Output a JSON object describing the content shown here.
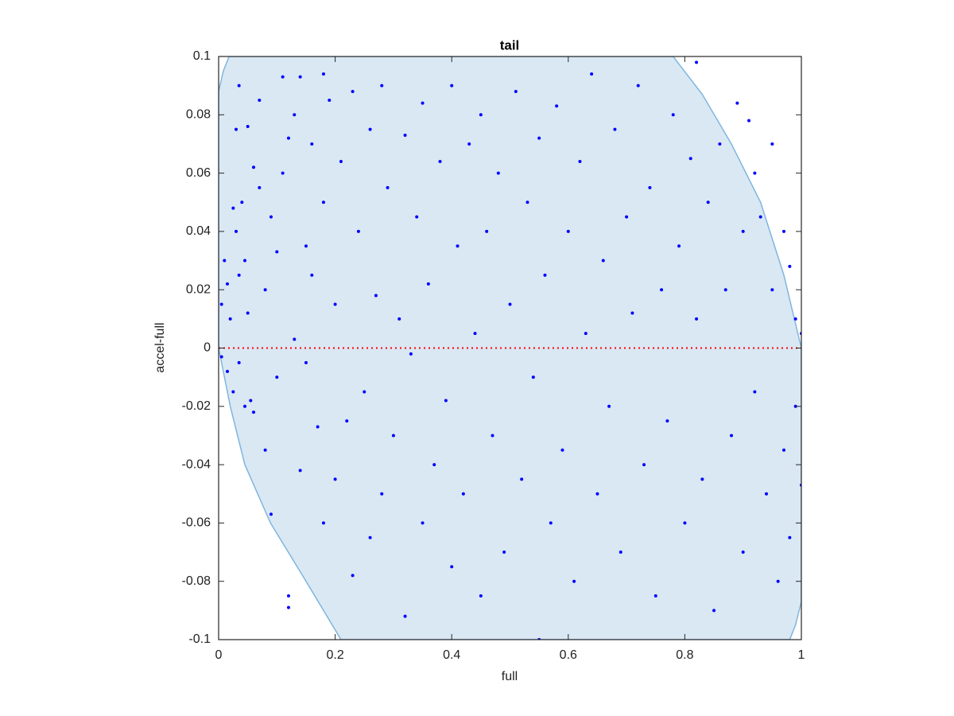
{
  "chart_data": {
    "type": "scatter",
    "title": "tail",
    "xlabel": "full",
    "ylabel": "accel-full",
    "xlim": [
      0,
      1
    ],
    "ylim": [
      -0.1,
      0.1
    ],
    "xticks": [
      0,
      0.2,
      0.4,
      0.6,
      0.8,
      1
    ],
    "yticks": [
      -0.1,
      -0.08,
      -0.06,
      -0.04,
      -0.02,
      0,
      0.02,
      0.04,
      0.06,
      0.08,
      0.1
    ],
    "color": "#0000ff",
    "region": {
      "color": "#d9e8f3",
      "edgecolor": "#7fb6de",
      "x": [
        0.018,
        0.008,
        0,
        0,
        0.02,
        0.045,
        0.089,
        0.15,
        0.21,
        0.98,
        0.99,
        1,
        1,
        0.97,
        0.93,
        0.88,
        0.83,
        0.78
      ],
      "y": [
        0.1,
        0.095,
        0.088,
        0,
        -0.02,
        -0.04,
        -0.06,
        -0.08,
        -0.1,
        -0.1,
        -0.095,
        -0.087,
        0,
        0.025,
        0.05,
        0.07,
        0.087,
        0.1
      ]
    },
    "reference_line": {
      "value": 0,
      "color": "#ff0000"
    },
    "x": [
      0.005,
      0.01,
      0.015,
      0.02,
      0.025,
      0.03,
      0.035,
      0.04,
      0.045,
      0.05,
      0.005,
      0.015,
      0.025,
      0.035,
      0.045,
      0.055,
      0.06,
      0.03,
      0.035,
      0.05,
      0.06,
      0.07,
      0.07,
      0.08,
      0.08,
      0.09,
      0.09,
      0.1,
      0.1,
      0.11,
      0.11,
      0.12,
      0.12,
      0.12,
      0.13,
      0.13,
      0.14,
      0.14,
      0.15,
      0.15,
      0.16,
      0.16,
      0.17,
      0.18,
      0.18,
      0.18,
      0.19,
      0.2,
      0.2,
      0.21,
      0.22,
      0.23,
      0.23,
      0.24,
      0.25,
      0.26,
      0.26,
      0.27,
      0.28,
      0.28,
      0.29,
      0.3,
      0.31,
      0.32,
      0.32,
      0.33,
      0.34,
      0.35,
      0.35,
      0.36,
      0.37,
      0.38,
      0.39,
      0.4,
      0.4,
      0.41,
      0.42,
      0.43,
      0.44,
      0.45,
      0.45,
      0.46,
      0.47,
      0.48,
      0.49,
      0.5,
      0.51,
      0.52,
      0.53,
      0.54,
      0.55,
      0.55,
      0.56,
      0.57,
      0.58,
      0.59,
      0.6,
      0.61,
      0.62,
      0.63,
      0.64,
      0.65,
      0.66,
      0.67,
      0.68,
      0.69,
      0.7,
      0.71,
      0.72,
      0.73,
      0.74,
      0.75,
      0.76,
      0.77,
      0.78,
      0.79,
      0.8,
      0.81,
      0.82,
      0.83,
      0.84,
      0.85,
      0.86,
      0.87,
      0.88,
      0.89,
      0.9,
      0.9,
      0.91,
      0.92,
      0.92,
      0.93,
      0.94,
      0.95,
      0.95,
      0.96,
      0.97,
      0.97,
      0.98,
      0.98,
      0.99,
      0.99,
      1,
      1,
      0.82
    ],
    "values": [
      0.015,
      0.03,
      0.022,
      0.01,
      0.048,
      0.04,
      0.025,
      0.05,
      0.03,
      0.012,
      -0.003,
      -0.008,
      -0.015,
      -0.005,
      -0.02,
      -0.018,
      -0.022,
      0.075,
      0.09,
      0.076,
      0.062,
      0.085,
      0.055,
      0.02,
      -0.035,
      0.045,
      -0.057,
      0.033,
      -0.01,
      0.093,
      0.06,
      0.072,
      -0.085,
      -0.089,
      0.08,
      0.003,
      0.093,
      -0.042,
      0.035,
      -0.005,
      0.07,
      0.025,
      -0.027,
      0.094,
      0.05,
      -0.06,
      0.085,
      0.015,
      -0.045,
      0.064,
      -0.025,
      0.088,
      -0.078,
      0.04,
      -0.015,
      0.075,
      -0.065,
      0.018,
      0.09,
      -0.05,
      0.055,
      -0.03,
      0.01,
      0.073,
      -0.092,
      -0.002,
      0.045,
      0.084,
      -0.06,
      0.022,
      -0.04,
      0.064,
      -0.018,
      0.09,
      -0.075,
      0.035,
      -0.05,
      0.07,
      0.005,
      0.08,
      -0.085,
      0.04,
      -0.03,
      0.06,
      -0.07,
      0.015,
      0.088,
      -0.045,
      0.05,
      -0.01,
      0.072,
      -0.1,
      0.025,
      -0.06,
      0.083,
      -0.035,
      0.04,
      -0.08,
      0.064,
      0.005,
      0.094,
      -0.05,
      0.03,
      -0.02,
      0.075,
      -0.07,
      0.045,
      0.012,
      0.09,
      -0.04,
      0.055,
      -0.085,
      0.02,
      -0.025,
      0.08,
      0.035,
      -0.06,
      0.065,
      0.01,
      -0.045,
      0.05,
      -0.09,
      0.07,
      0.02,
      -0.03,
      0.084,
      0.04,
      -0.07,
      0.078,
      0.06,
      -0.015,
      0.045,
      -0.05,
      0.02,
      0.07,
      -0.08,
      0.04,
      -0.035,
      0.028,
      -0.065,
      0.01,
      -0.02,
      0.005,
      -0.047,
      0.098
    ]
  }
}
